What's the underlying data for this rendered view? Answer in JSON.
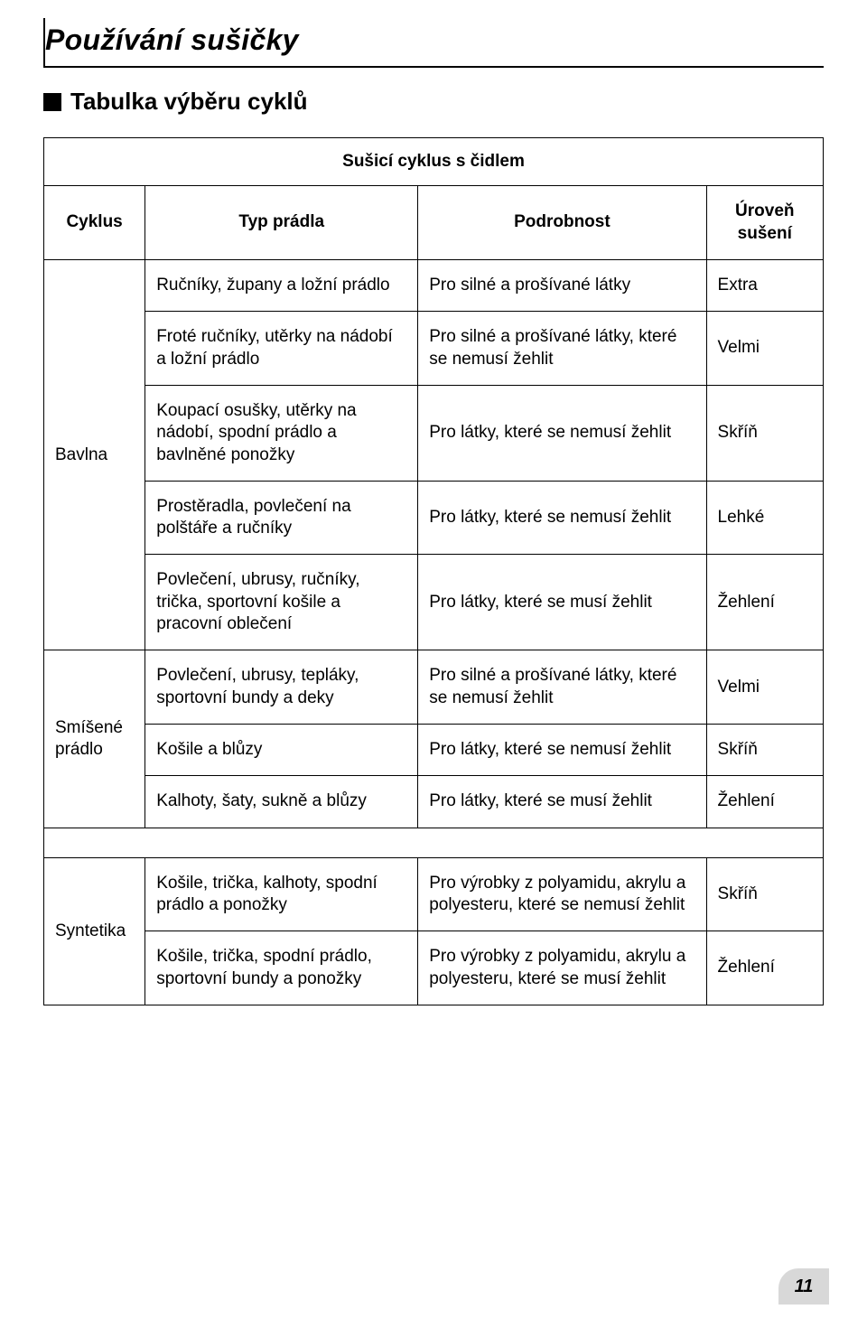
{
  "page": {
    "title": "Používání sušičky",
    "subheading": "Tabulka výběru cyklů",
    "sensor_heading": "Sušicí cyklus s čidlem",
    "page_number": "11"
  },
  "headers": {
    "cycle": "Cyklus",
    "type": "Typ prádla",
    "detail": "Podrobnost",
    "level": "Úroveň sušení"
  },
  "groups": {
    "cotton": "Bavlna",
    "mixed": "Smíšené prádlo",
    "synth": "Syntetika"
  },
  "rows": {
    "c1": {
      "type": "Ručníky, župany a ložní prádlo",
      "detail": "Pro silné a prošívané látky",
      "level": "Extra"
    },
    "c2": {
      "type": "Froté ručníky, utěrky na nádobí a ložní prádlo",
      "detail": "Pro silné a prošívané látky, které se nemusí žehlit",
      "level": "Velmi"
    },
    "c3": {
      "type": "Koupací osušky, utěrky na nádobí, spodní prádlo a bavlněné ponožky",
      "detail": "Pro látky, které se nemusí žehlit",
      "level": "Skříň"
    },
    "c4": {
      "type": "Prostěradla, povlečení na polštáře a ručníky",
      "detail": "Pro látky, které se nemusí žehlit",
      "level": "Lehké"
    },
    "c5": {
      "type": "Povlečení, ubrusy, ručníky, trička, sportovní košile a pracovní oblečení",
      "detail": "Pro látky, které se musí žehlit",
      "level": "Žehlení"
    },
    "m1": {
      "type": "Povlečení, ubrusy, tepláky, sportovní bundy a deky",
      "detail": "Pro silné a prošívané látky, které se nemusí žehlit",
      "level": "Velmi"
    },
    "m2": {
      "type": "Košile a blůzy",
      "detail": "Pro látky, které se nemusí žehlit",
      "level": "Skříň"
    },
    "m3": {
      "type": "Kalhoty, šaty, sukně a blůzy",
      "detail": "Pro látky, které se musí žehlit",
      "level": "Žehlení"
    },
    "s1": {
      "type": "Košile, trička, kalhoty, spodní prádlo a ponožky",
      "detail": "Pro výrobky z polyamidu, akrylu a polyesteru, které se nemusí žehlit",
      "level": "Skříň"
    },
    "s2": {
      "type": "Košile, trička, spodní prádlo, sportovní bundy a ponožky",
      "detail": "Pro výrobky z polyamidu, akrylu a polyesteru, které se musí žehlit",
      "level": "Žehlení"
    }
  }
}
